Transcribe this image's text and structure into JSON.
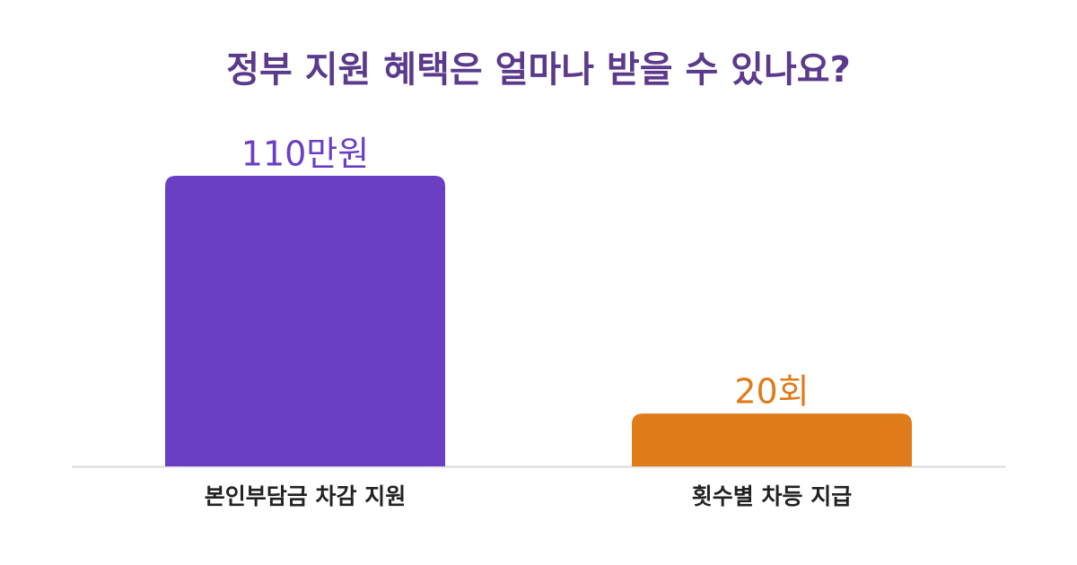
{
  "chart_data": {
    "type": "bar",
    "title": "정부 지원 혜택은 얼마나 받을 수 있나요?",
    "categories": [
      "본인부담금 차감 지원",
      "횟수별 차등 지급"
    ],
    "values": [
      110,
      20
    ],
    "value_labels": [
      "110만원",
      "20회"
    ],
    "colors": [
      "#6a3fc4",
      "#e07b1a"
    ]
  }
}
